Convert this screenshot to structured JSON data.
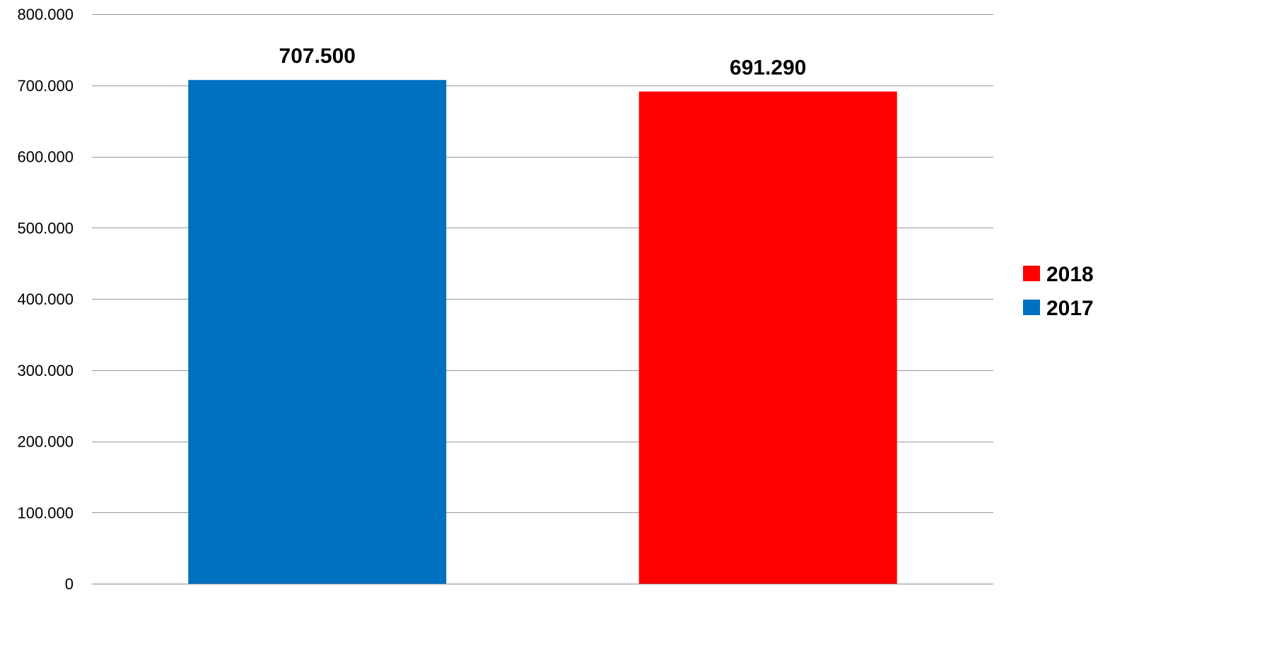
{
  "chart_data": {
    "type": "bar",
    "title": "",
    "xlabel": "",
    "ylabel": "",
    "ylim": [
      0,
      800000
    ],
    "yticks": [
      0,
      100000,
      200000,
      300000,
      400000,
      500000,
      600000,
      700000,
      800000
    ],
    "ytick_labels": [
      "0",
      "100.000",
      "200.000",
      "300.000",
      "400.000",
      "500.000",
      "600.000",
      "700.000",
      "800.000"
    ],
    "grid": true,
    "legend_position": "right",
    "bars": [
      {
        "series": "2017",
        "value": 707500,
        "label": "707.500",
        "color": "#0070C0"
      },
      {
        "series": "2018",
        "value": 691290,
        "label": "691.290",
        "color": "#FF0000"
      }
    ],
    "legend": [
      {
        "name": "2018",
        "color": "#FF0000"
      },
      {
        "name": "2017",
        "color": "#0070C0"
      }
    ]
  }
}
